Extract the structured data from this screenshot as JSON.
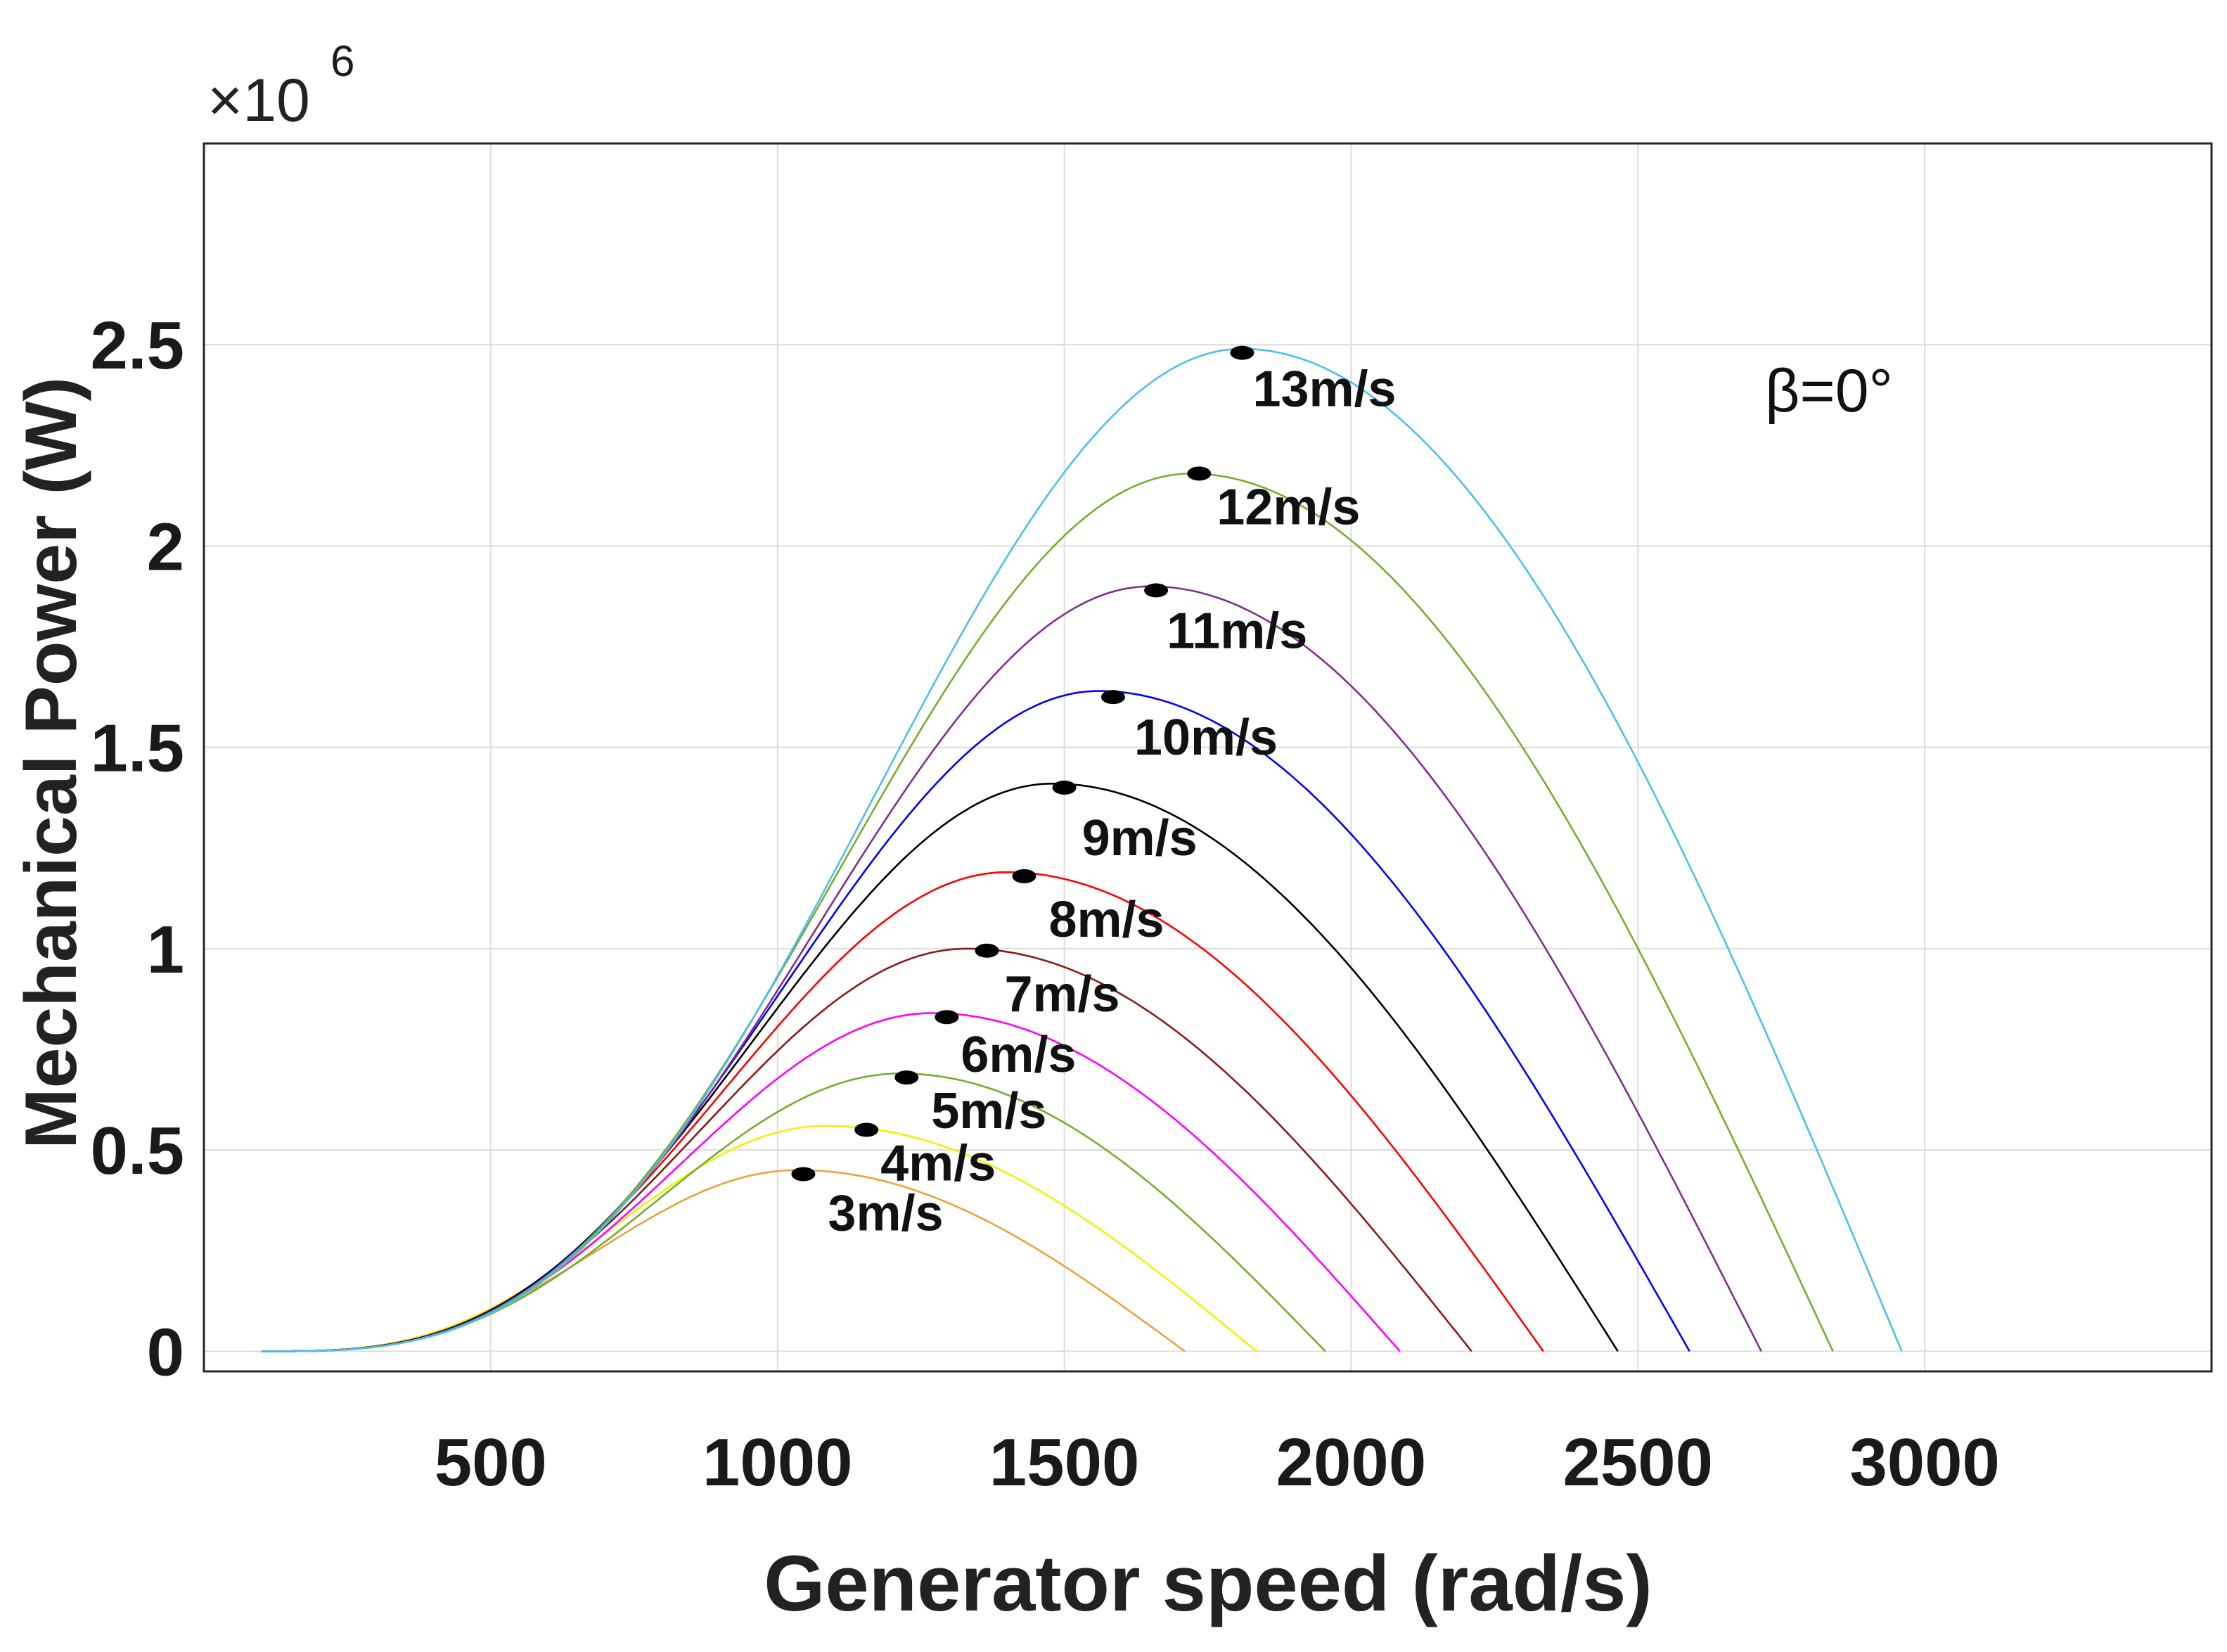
{
  "chart_data": {
    "type": "line",
    "title": "",
    "xlabel": "Generator speed (rad/s)",
    "ylabel": "Mechanical Power (W)",
    "exponent_base": "×10",
    "exponent_power": "6",
    "annotation": "β=0°",
    "xlim": [
      0,
      3500
    ],
    "ylim": [
      -0.05,
      3.0
    ],
    "x_ticks": [
      500,
      1000,
      1500,
      2000,
      2500,
      3000
    ],
    "y_ticks": [
      0,
      0.5,
      1,
      1.5,
      2,
      2.5
    ],
    "x_tick_labels": [
      "500",
      "1000",
      "1500",
      "2000",
      "2500",
      "3000"
    ],
    "y_tick_labels": [
      "0",
      "0.5",
      "1",
      "1.5",
      "2",
      "2.5"
    ],
    "grid": true,
    "series": [
      {
        "name": "3m/s",
        "color": "#e8a33d",
        "x_end": 1710,
        "peak_x": 1035,
        "peak_y": 0.45,
        "marker_x": 1045,
        "marker_y": 0.44
      },
      {
        "name": "4m/s",
        "color": "#f2f200",
        "x_end": 1835,
        "peak_x": 1085,
        "peak_y": 0.56,
        "marker_x": 1155,
        "marker_y": 0.55
      },
      {
        "name": "5m/s",
        "color": "#77ac30",
        "x_end": 1955,
        "peak_x": 1215,
        "peak_y": 0.69,
        "marker_x": 1225,
        "marker_y": 0.68
      },
      {
        "name": "6m/s",
        "color": "#ff00ff",
        "x_end": 2085,
        "peak_x": 1270,
        "peak_y": 0.84,
        "marker_x": 1295,
        "marker_y": 0.83
      },
      {
        "name": "7m/s",
        "color": "#8b1a1a",
        "x_end": 2210,
        "peak_x": 1330,
        "peak_y": 1.0,
        "marker_x": 1365,
        "marker_y": 0.995
      },
      {
        "name": "8m/s",
        "color": "#ff0000",
        "x_end": 2335,
        "peak_x": 1400,
        "peak_y": 1.19,
        "marker_x": 1430,
        "marker_y": 1.18
      },
      {
        "name": "9m/s",
        "color": "#000000",
        "x_end": 2465,
        "peak_x": 1480,
        "peak_y": 1.41,
        "marker_x": 1500,
        "marker_y": 1.4
      },
      {
        "name": "10m/s",
        "color": "#0000ff",
        "x_end": 2590,
        "peak_x": 1560,
        "peak_y": 1.64,
        "marker_x": 1585,
        "marker_y": 1.625
      },
      {
        "name": "11m/s",
        "color": "#7e2f8e",
        "x_end": 2715,
        "peak_x": 1650,
        "peak_y": 1.9,
        "marker_x": 1660,
        "marker_y": 1.89
      },
      {
        "name": "12m/s",
        "color": "#77ac30",
        "x_end": 2840,
        "peak_x": 1720,
        "peak_y": 2.18,
        "marker_x": 1735,
        "marker_y": 2.18
      },
      {
        "name": "13m/s",
        "color": "#4dbeee",
        "x_end": 2960,
        "peak_x": 1810,
        "peak_y": 2.49,
        "marker_x": 1810,
        "marker_y": 2.48
      }
    ]
  }
}
